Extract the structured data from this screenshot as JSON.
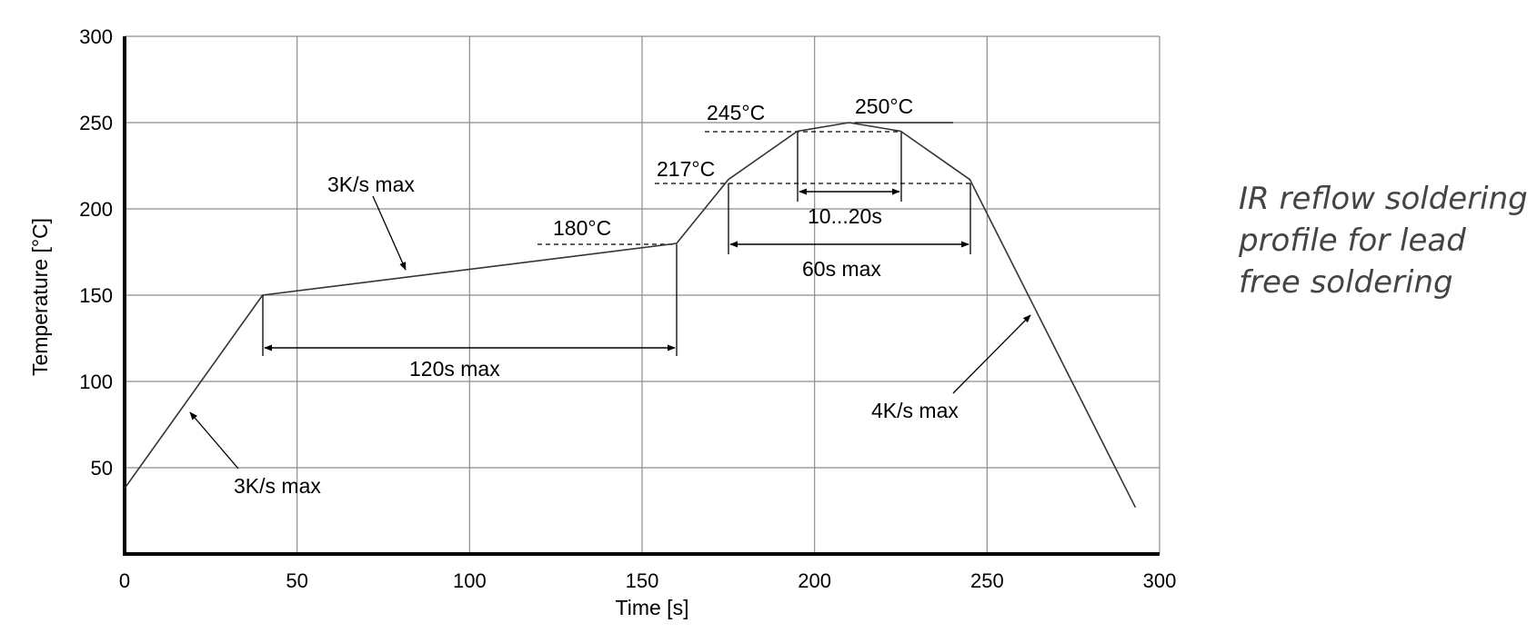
{
  "chart_data": {
    "type": "line",
    "title": "",
    "xlabel": "Time [s]",
    "ylabel": "Temperature [°C]",
    "xlim": [
      0,
      300
    ],
    "ylim": [
      0,
      300
    ],
    "x_ticks": [
      "0",
      "50",
      "100",
      "150",
      "200",
      "250",
      "300"
    ],
    "y_ticks": [
      "50",
      "100",
      "150",
      "200",
      "250",
      "300"
    ],
    "grid": true,
    "series": [
      {
        "x": [
          0,
          40,
          160,
          175,
          195,
          210,
          225,
          245,
          293
        ],
        "y": [
          38,
          150,
          180,
          217,
          245,
          250,
          245,
          217,
          27
        ]
      }
    ],
    "annotations": {
      "ramp_up_label": "3K/s max",
      "preheat_slope_label": "3K/s max",
      "cool_down_label": "4K/s max",
      "temp_180": "180°C",
      "temp_217": "217°C",
      "temp_245": "245°C",
      "temp_250": "250°C",
      "preheat_duration": "120s max",
      "above_217_duration": "60s max",
      "peak_duration": "10...20s"
    }
  },
  "side_note": "IR reflow soldering profile for lead free soldering"
}
